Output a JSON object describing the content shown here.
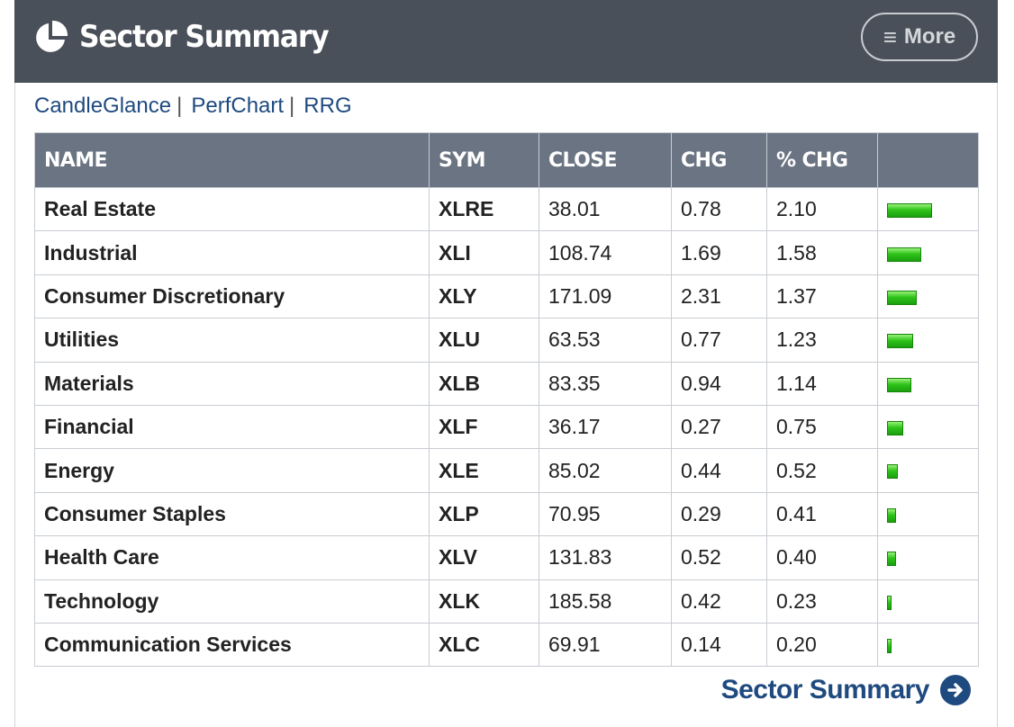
{
  "header": {
    "title": "Sector Summary",
    "more_label": "More",
    "icon": "pie-chart-icon"
  },
  "links": [
    "CandleGlance",
    "PerfChart",
    "RRG"
  ],
  "table": {
    "columns": [
      "NAME",
      "SYM",
      "CLOSE",
      "CHG",
      "% CHG",
      ""
    ],
    "rows": [
      {
        "name": "Real Estate",
        "sym": "XLRE",
        "close": "38.01",
        "chg": "0.78",
        "pct": "2.10"
      },
      {
        "name": "Industrial",
        "sym": "XLI",
        "close": "108.74",
        "chg": "1.69",
        "pct": "1.58"
      },
      {
        "name": "Consumer Discretionary",
        "sym": "XLY",
        "close": "171.09",
        "chg": "2.31",
        "pct": "1.37"
      },
      {
        "name": "Utilities",
        "sym": "XLU",
        "close": "63.53",
        "chg": "0.77",
        "pct": "1.23"
      },
      {
        "name": "Materials",
        "sym": "XLB",
        "close": "83.35",
        "chg": "0.94",
        "pct": "1.14"
      },
      {
        "name": "Financial",
        "sym": "XLF",
        "close": "36.17",
        "chg": "0.27",
        "pct": "0.75"
      },
      {
        "name": "Energy",
        "sym": "XLE",
        "close": "85.02",
        "chg": "0.44",
        "pct": "0.52"
      },
      {
        "name": "Consumer Staples",
        "sym": "XLP",
        "close": "70.95",
        "chg": "0.29",
        "pct": "0.41"
      },
      {
        "name": "Health Care",
        "sym": "XLV",
        "close": "131.83",
        "chg": "0.52",
        "pct": "0.40"
      },
      {
        "name": "Technology",
        "sym": "XLK",
        "close": "185.58",
        "chg": "0.42",
        "pct": "0.23"
      },
      {
        "name": "Communication Services",
        "sym": "XLC",
        "close": "69.91",
        "chg": "0.14",
        "pct": "0.20"
      }
    ]
  },
  "footer": {
    "link_label": "Sector Summary",
    "icon": "arrow-right-circle-icon"
  },
  "colors": {
    "header_bg": "#4a5059",
    "table_header_bg": "#6b7482",
    "link": "#1f4a80",
    "bar_positive": "#2fc41a"
  }
}
